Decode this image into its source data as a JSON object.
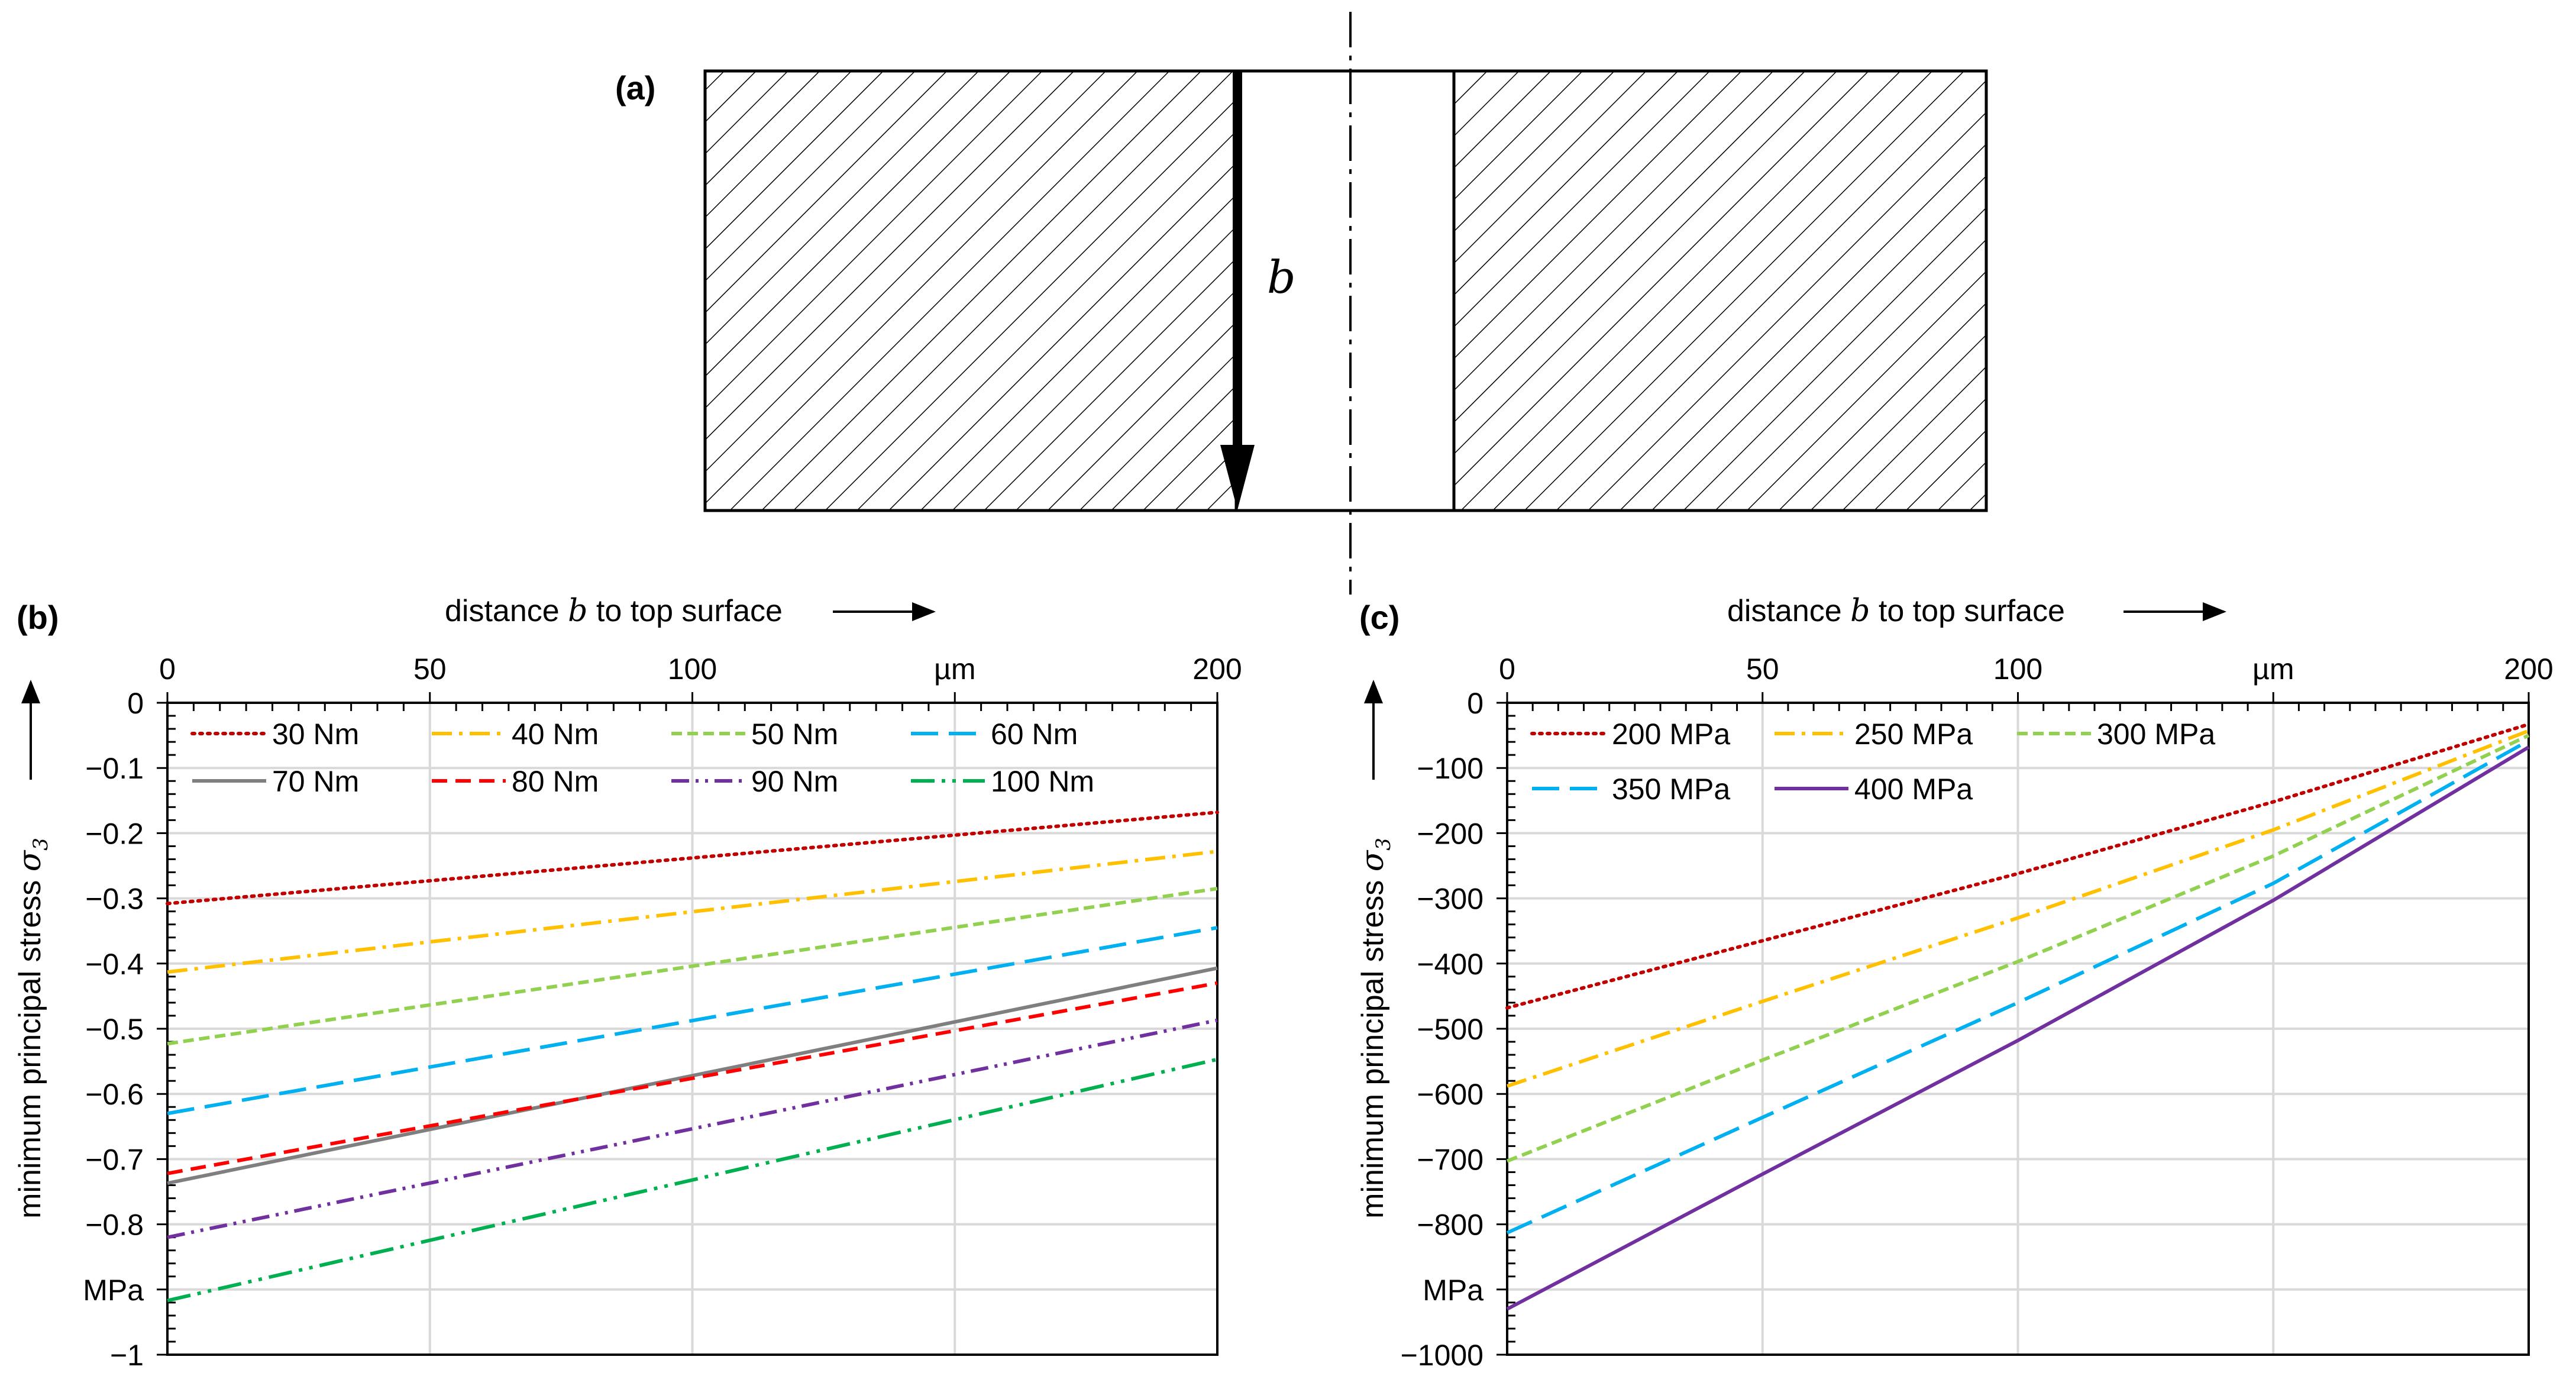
{
  "panel_a": {
    "label": "(a)",
    "dimension_label": "b"
  },
  "colors": {
    "red": "#c00000",
    "yellow": "#ffc000",
    "green": "#92d050",
    "blue": "#00b0f0",
    "gray": "#7f7f7f",
    "bright_red": "#ff0000",
    "purple": "#7030a0",
    "dark_green": "#00b050",
    "grid": "#d9d9d9"
  },
  "chart_data": [
    {
      "type": "line",
      "panel_label": "(b)",
      "title": "",
      "xlabel": "distance b to top surface",
      "ylabel": "minimum principal stress σ3",
      "x_unit": "µm",
      "y_unit": "MPa",
      "xlim": [
        0,
        200
      ],
      "ylim": [
        -1,
        0
      ],
      "x_ticks": [
        "0",
        "50",
        "100",
        "µm",
        "200"
      ],
      "y_ticks": [
        "0",
        "−0.1",
        "−0.2",
        "−0.3",
        "−0.4",
        "−0.5",
        "−0.6",
        "−0.7",
        "−0.8",
        "MPa",
        "−1"
      ],
      "grid": true,
      "legend_position": "top",
      "series": [
        {
          "name": "30 Nm",
          "color": "#c00000",
          "dash": "dotted",
          "x": [
            0,
            200
          ],
          "y": [
            -0.308,
            -0.168
          ]
        },
        {
          "name": "40 Nm",
          "color": "#ffc000",
          "dash": "dashdot",
          "x": [
            0,
            200
          ],
          "y": [
            -0.413,
            -0.228
          ]
        },
        {
          "name": "50 Nm",
          "color": "#92d050",
          "dash": "dashed-short",
          "x": [
            0,
            200
          ],
          "y": [
            -0.523,
            -0.285
          ]
        },
        {
          "name": "60 Nm",
          "color": "#00b0f0",
          "dash": "dashed-long",
          "x": [
            0,
            200
          ],
          "y": [
            -0.63,
            -0.345
          ]
        },
        {
          "name": "70 Nm",
          "color": "#7f7f7f",
          "dash": "solid",
          "x": [
            0,
            200
          ],
          "y": [
            -0.737,
            -0.407
          ]
        },
        {
          "name": "80 Nm",
          "color": "#ff0000",
          "dash": "dashed",
          "x": [
            0,
            200
          ],
          "y": [
            -0.722,
            -0.43
          ]
        },
        {
          "name": "90 Nm",
          "color": "#7030a0",
          "dash": "dashdotdot",
          "x": [
            0,
            200
          ],
          "y": [
            -0.82,
            -0.487
          ]
        },
        {
          "name": "100 Nm",
          "color": "#00b050",
          "dash": "dashdotdot-long",
          "x": [
            0,
            200
          ],
          "y": [
            -0.917,
            -0.547
          ]
        }
      ]
    },
    {
      "type": "line",
      "panel_label": "(c)",
      "title": "",
      "xlabel": "distance b to top surface",
      "ylabel": "minimum principal stress σ3",
      "x_unit": "µm",
      "y_unit": "MPa",
      "xlim": [
        0,
        200
      ],
      "ylim": [
        -1000,
        0
      ],
      "x_ticks": [
        "0",
        "50",
        "100",
        "µm",
        "200"
      ],
      "y_ticks": [
        "0",
        "−100",
        "−200",
        "−300",
        "−400",
        "−500",
        "−600",
        "−700",
        "−800",
        "MPa",
        "−1000"
      ],
      "grid": true,
      "legend_position": "top",
      "series": [
        {
          "name": "200 MPa",
          "color": "#c00000",
          "dash": "dotted",
          "x": [
            0,
            50,
            100,
            150,
            200
          ],
          "y": [
            -468,
            -365,
            -262,
            -152,
            -33
          ]
        },
        {
          "name": "250 MPa",
          "color": "#ffc000",
          "dash": "dashdot",
          "x": [
            0,
            50,
            100,
            150,
            200
          ],
          "y": [
            -588,
            -458,
            -330,
            -195,
            -43
          ]
        },
        {
          "name": "300 MPa",
          "color": "#92d050",
          "dash": "dashed-short",
          "x": [
            0,
            50,
            100,
            150,
            200
          ],
          "y": [
            -703,
            -548,
            -397,
            -235,
            -50
          ]
        },
        {
          "name": "350 MPa",
          "color": "#00b0f0",
          "dash": "dashed-long",
          "x": [
            0,
            50,
            100,
            150,
            200
          ],
          "y": [
            -813,
            -636,
            -460,
            -277,
            -58
          ]
        },
        {
          "name": "400 MPa",
          "color": "#7030a0",
          "dash": "solid",
          "x": [
            0,
            50,
            100,
            150,
            200
          ],
          "y": [
            -930,
            -723,
            -518,
            -303,
            -68
          ]
        }
      ]
    }
  ]
}
